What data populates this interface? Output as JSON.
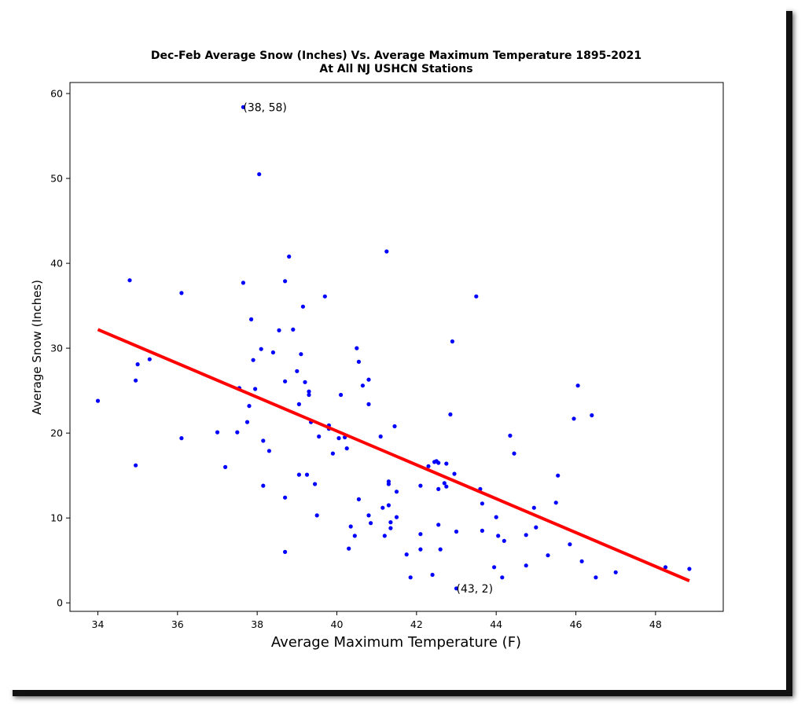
{
  "chart_data": {
    "type": "scatter",
    "title": "Dec-Feb Average Snow (Inches) Vs. Average Maximum Temperature 1895-2021",
    "subtitle": "At All NJ USHCN Stations",
    "xlabel": "Average Maximum Temperature (F)",
    "ylabel": "Average Snow (Inches)",
    "xlim": [
      33.3,
      49.7
    ],
    "ylim": [
      -1,
      61.3
    ],
    "xticks": [
      34,
      36,
      38,
      40,
      42,
      44,
      46,
      48
    ],
    "yticks": [
      0,
      10,
      20,
      30,
      40,
      50,
      60
    ],
    "grid": false,
    "point_color": "#0000ff",
    "trend_color": "#ff0000",
    "trendline": {
      "x": [
        34.0,
        48.85
      ],
      "y": [
        32.2,
        2.6
      ]
    },
    "annotations": [
      {
        "text": "(38, 58)",
        "x": 37.65,
        "y": 58.4
      },
      {
        "text": "(43, 2)",
        "x": 43.0,
        "y": 1.7
      }
    ],
    "points": [
      [
        34.0,
        23.8
      ],
      [
        34.8,
        38.0
      ],
      [
        34.95,
        26.2
      ],
      [
        34.95,
        16.2
      ],
      [
        35.0,
        28.1
      ],
      [
        35.3,
        28.7
      ],
      [
        36.1,
        36.5
      ],
      [
        36.1,
        19.4
      ],
      [
        37.0,
        20.1
      ],
      [
        37.2,
        16.0
      ],
      [
        37.5,
        20.1
      ],
      [
        37.55,
        25.3
      ],
      [
        37.65,
        58.4
      ],
      [
        37.65,
        37.7
      ],
      [
        37.75,
        21.3
      ],
      [
        37.8,
        23.2
      ],
      [
        37.85,
        33.4
      ],
      [
        37.9,
        28.6
      ],
      [
        37.95,
        25.2
      ],
      [
        38.05,
        50.5
      ],
      [
        38.1,
        29.9
      ],
      [
        38.15,
        19.1
      ],
      [
        38.15,
        13.8
      ],
      [
        38.3,
        17.9
      ],
      [
        38.4,
        29.5
      ],
      [
        38.55,
        32.1
      ],
      [
        38.7,
        37.9
      ],
      [
        38.7,
        26.1
      ],
      [
        38.7,
        12.4
      ],
      [
        38.7,
        6.0
      ],
      [
        38.8,
        40.8
      ],
      [
        38.9,
        32.2
      ],
      [
        39.0,
        27.3
      ],
      [
        39.05,
        23.4
      ],
      [
        39.05,
        15.1
      ],
      [
        39.1,
        29.3
      ],
      [
        39.15,
        34.9
      ],
      [
        39.2,
        26.0
      ],
      [
        39.25,
        15.1
      ],
      [
        39.3,
        24.9
      ],
      [
        39.3,
        24.5
      ],
      [
        39.35,
        21.3
      ],
      [
        39.45,
        14.0
      ],
      [
        39.5,
        10.3
      ],
      [
        39.55,
        19.6
      ],
      [
        39.7,
        36.1
      ],
      [
        39.8,
        20.9
      ],
      [
        39.8,
        20.5
      ],
      [
        39.9,
        17.6
      ],
      [
        40.05,
        19.4
      ],
      [
        40.1,
        24.5
      ],
      [
        40.2,
        19.5
      ],
      [
        40.25,
        18.2
      ],
      [
        40.3,
        6.4
      ],
      [
        40.35,
        9.0
      ],
      [
        40.45,
        7.9
      ],
      [
        40.5,
        30.0
      ],
      [
        40.55,
        28.4
      ],
      [
        40.55,
        12.2
      ],
      [
        40.65,
        25.6
      ],
      [
        40.8,
        26.3
      ],
      [
        40.8,
        23.4
      ],
      [
        40.8,
        10.3
      ],
      [
        40.85,
        9.4
      ],
      [
        41.1,
        19.6
      ],
      [
        41.15,
        11.2
      ],
      [
        41.2,
        7.9
      ],
      [
        41.25,
        41.4
      ],
      [
        41.3,
        14.3
      ],
      [
        41.3,
        14.0
      ],
      [
        41.3,
        11.5
      ],
      [
        41.35,
        8.8
      ],
      [
        41.35,
        9.5
      ],
      [
        41.45,
        20.8
      ],
      [
        41.5,
        10.1
      ],
      [
        41.5,
        13.1
      ],
      [
        41.75,
        5.7
      ],
      [
        41.85,
        3.0
      ],
      [
        42.1,
        13.8
      ],
      [
        42.1,
        8.1
      ],
      [
        42.1,
        6.3
      ],
      [
        42.3,
        16.1
      ],
      [
        42.4,
        3.3
      ],
      [
        42.45,
        16.6
      ],
      [
        42.5,
        16.7
      ],
      [
        42.55,
        16.5
      ],
      [
        42.55,
        13.4
      ],
      [
        42.55,
        9.2
      ],
      [
        42.6,
        6.3
      ],
      [
        42.7,
        14.1
      ],
      [
        42.75,
        16.4
      ],
      [
        42.75,
        13.7
      ],
      [
        42.85,
        22.2
      ],
      [
        42.9,
        30.8
      ],
      [
        42.95,
        15.2
      ],
      [
        43.0,
        8.4
      ],
      [
        43.0,
        1.7
      ],
      [
        43.5,
        36.1
      ],
      [
        43.6,
        13.4
      ],
      [
        43.65,
        11.7
      ],
      [
        43.65,
        8.5
      ],
      [
        43.95,
        4.2
      ],
      [
        44.0,
        10.1
      ],
      [
        44.05,
        7.9
      ],
      [
        44.15,
        3.0
      ],
      [
        44.2,
        7.3
      ],
      [
        44.35,
        19.7
      ],
      [
        44.45,
        17.6
      ],
      [
        44.75,
        8.0
      ],
      [
        44.75,
        4.4
      ],
      [
        44.95,
        11.2
      ],
      [
        45.0,
        8.9
      ],
      [
        45.3,
        5.6
      ],
      [
        45.5,
        11.8
      ],
      [
        45.55,
        15.0
      ],
      [
        45.85,
        6.9
      ],
      [
        45.95,
        21.7
      ],
      [
        46.05,
        25.6
      ],
      [
        46.15,
        4.9
      ],
      [
        46.4,
        22.1
      ],
      [
        46.5,
        3.0
      ],
      [
        47.0,
        3.6
      ],
      [
        48.25,
        4.2
      ],
      [
        48.85,
        4.0
      ]
    ]
  }
}
